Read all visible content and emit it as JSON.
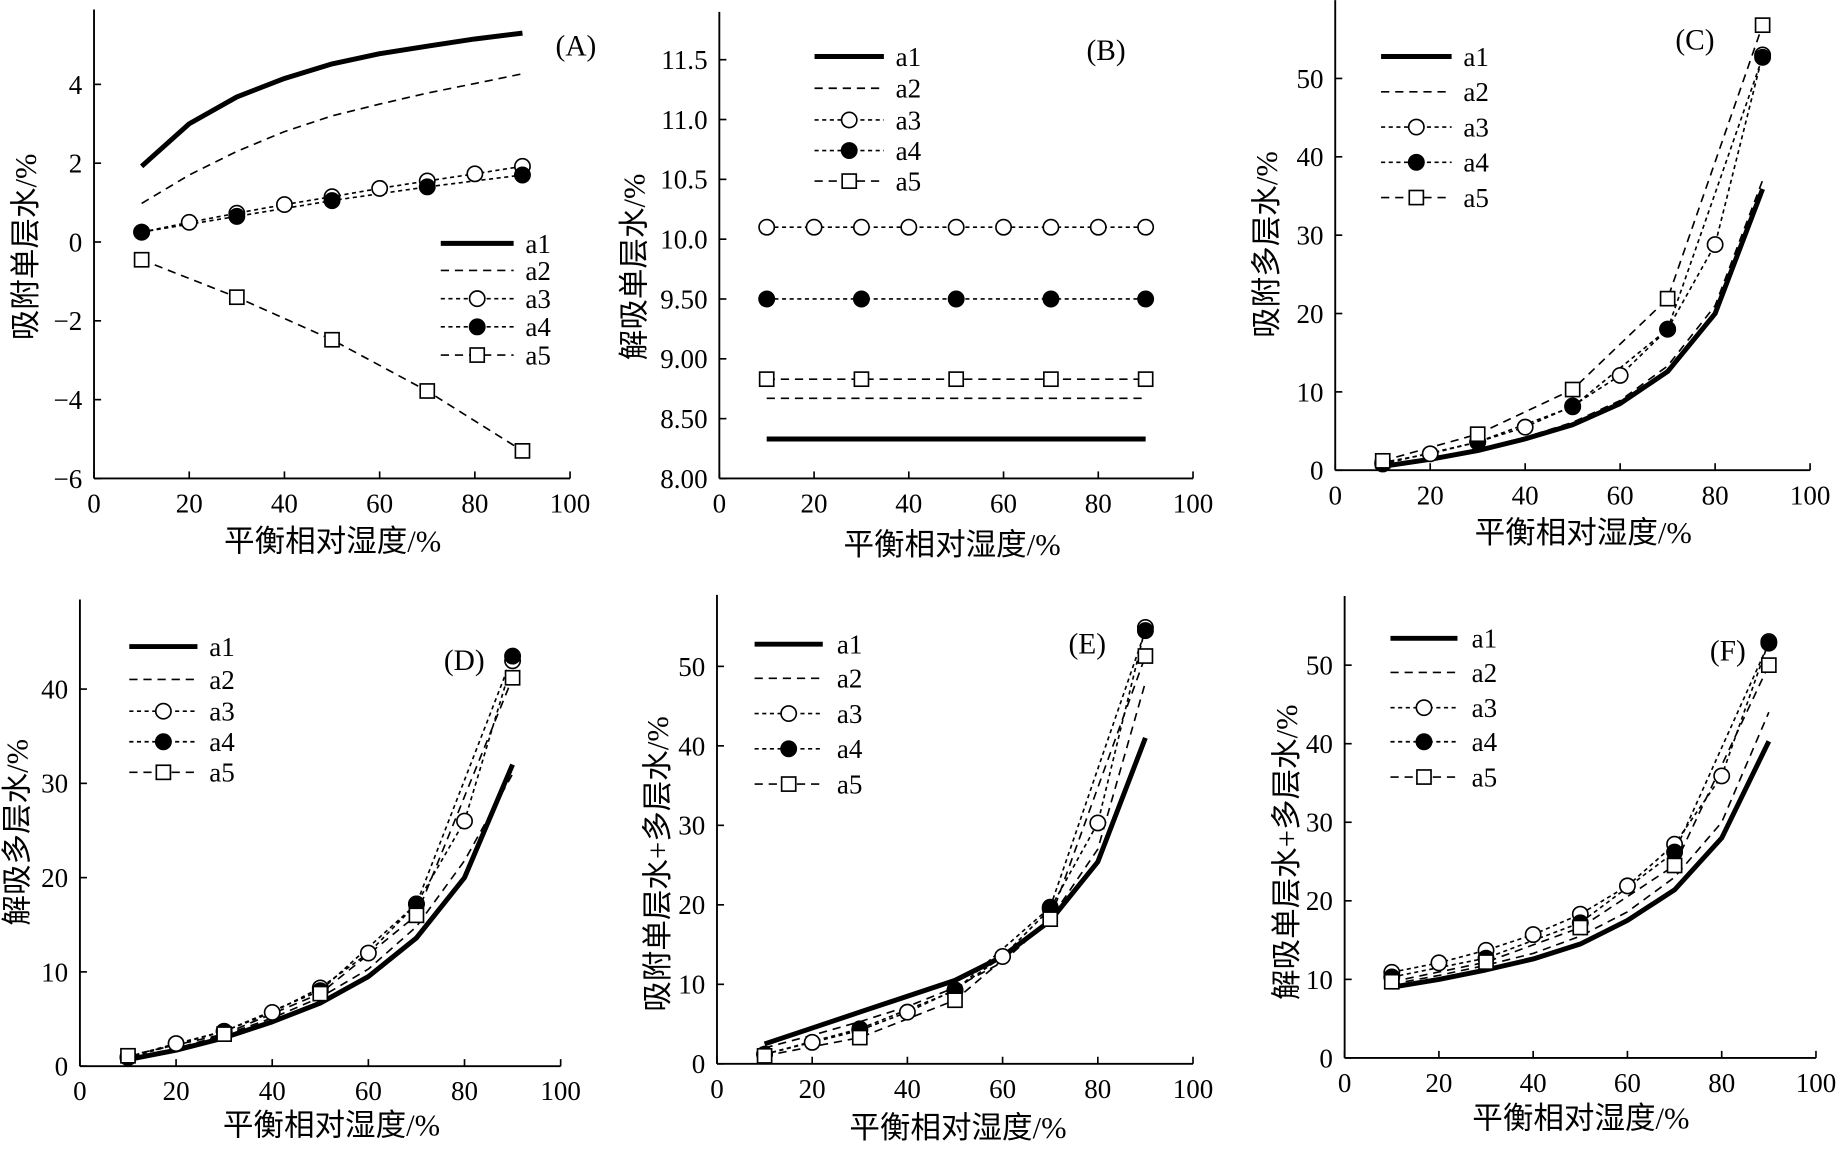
{
  "chart_data": [
    {
      "panel_label": "(A)",
      "type": "line",
      "xlabel": "平衡相对湿度/%",
      "ylabel": "吸附单层水/%",
      "xlim": [
        0,
        100
      ],
      "ylim": [
        -6,
        5.9
      ],
      "xticks": [
        0,
        20,
        40,
        60,
        80,
        100
      ],
      "yticks": [
        -6,
        -4,
        -2,
        0,
        2,
        4
      ],
      "ytick_labels": [
        "−6",
        "−4",
        "−2",
        "0",
        "2",
        "4"
      ],
      "grid": false,
      "legend": "center-right",
      "series": [
        {
          "name": "a1",
          "line": "solid-thick",
          "marker": "none",
          "x": [
            10,
            20,
            30,
            40,
            50,
            60,
            70,
            80,
            90
          ],
          "y": [
            1.92,
            3.0,
            3.68,
            4.15,
            4.52,
            4.78,
            4.97,
            5.15,
            5.3
          ]
        },
        {
          "name": "a2",
          "line": "dashed",
          "marker": "none",
          "x": [
            10,
            20,
            30,
            40,
            50,
            60,
            70,
            80,
            90
          ],
          "y": [
            0.98,
            1.7,
            2.3,
            2.8,
            3.2,
            3.5,
            3.78,
            4.02,
            4.27
          ]
        },
        {
          "name": "a3",
          "line": "short-dashed",
          "marker": "open-circle",
          "x": [
            10,
            20,
            30,
            40,
            50,
            60,
            70,
            80,
            90
          ],
          "y": [
            0.25,
            0.5,
            0.73,
            0.95,
            1.15,
            1.36,
            1.55,
            1.73,
            1.92
          ]
        },
        {
          "name": "a4",
          "line": "short-dashed",
          "marker": "filled-circle",
          "x": [
            10,
            30,
            50,
            70,
            90
          ],
          "y": [
            0.25,
            0.65,
            1.05,
            1.4,
            1.7
          ]
        },
        {
          "name": "a5",
          "line": "dashed",
          "marker": "open-square",
          "x": [
            10,
            30,
            50,
            70,
            90
          ],
          "y": [
            -0.45,
            -1.4,
            -2.48,
            -3.78,
            -5.3
          ]
        }
      ]
    },
    {
      "panel_label": "(B)",
      "type": "line",
      "xlabel": "平衡相对湿度/%",
      "ylabel": "解吸单层水/%",
      "xlim": [
        0,
        100
      ],
      "ylim": [
        8,
        11.9
      ],
      "xticks": [
        0,
        20,
        40,
        60,
        80,
        100
      ],
      "yticks": [
        8.0,
        8.5,
        9.0,
        9.5,
        10.0,
        10.5,
        11.0,
        11.5
      ],
      "ytick_labels": [
        "8.00",
        "8.50",
        "9.00",
        "9.50",
        "10.0",
        "10.5",
        "11.0",
        "11.5"
      ],
      "grid": false,
      "legend": "upper-left",
      "series": [
        {
          "name": "a1",
          "line": "solid-thick",
          "marker": "none",
          "x": [
            10,
            20,
            30,
            40,
            50,
            60,
            70,
            80,
            90
          ],
          "y": [
            8.33,
            8.33,
            8.33,
            8.33,
            8.33,
            8.33,
            8.33,
            8.33,
            8.33
          ]
        },
        {
          "name": "a2",
          "line": "dashed",
          "marker": "none",
          "x": [
            10,
            20,
            30,
            40,
            50,
            60,
            70,
            80,
            90
          ],
          "y": [
            8.67,
            8.67,
            8.67,
            8.67,
            8.67,
            8.67,
            8.67,
            8.67,
            8.67
          ]
        },
        {
          "name": "a3",
          "line": "short-dashed",
          "marker": "open-circle",
          "x": [
            10,
            20,
            30,
            40,
            50,
            60,
            70,
            80,
            90
          ],
          "y": [
            10.1,
            10.1,
            10.1,
            10.1,
            10.1,
            10.1,
            10.1,
            10.1,
            10.1
          ]
        },
        {
          "name": "a4",
          "line": "short-dashed",
          "marker": "filled-circle",
          "x": [
            10,
            30,
            50,
            70,
            90
          ],
          "y": [
            9.5,
            9.5,
            9.5,
            9.5,
            9.5
          ]
        },
        {
          "name": "a5",
          "line": "dashed",
          "marker": "open-square",
          "x": [
            10,
            30,
            50,
            70,
            90
          ],
          "y": [
            8.83,
            8.83,
            8.83,
            8.83,
            8.83
          ]
        }
      ]
    },
    {
      "panel_label": "(C)",
      "type": "line",
      "xlabel": "平衡相对湿度/%",
      "ylabel": "吸附多层水/%",
      "xlim": [
        0,
        100
      ],
      "ylim": [
        0,
        60
      ],
      "xticks": [
        0,
        20,
        40,
        60,
        80,
        100
      ],
      "yticks": [
        0,
        10,
        20,
        30,
        40,
        50
      ],
      "ytick_labels": [
        "0",
        "10",
        "20",
        "30",
        "40",
        "50"
      ],
      "grid": false,
      "legend": "upper-left",
      "series": [
        {
          "name": "a1",
          "line": "solid-thick",
          "marker": "none",
          "x": [
            10,
            20,
            30,
            40,
            50,
            60,
            70,
            80,
            90
          ],
          "y": [
            0.5,
            1.4,
            2.5,
            4.0,
            5.8,
            8.5,
            12.6,
            20.0,
            35.9
          ]
        },
        {
          "name": "a2",
          "line": "dashed",
          "marker": "none",
          "x": [
            10,
            20,
            30,
            40,
            50,
            60,
            70,
            80,
            90
          ],
          "y": [
            0.6,
            1.5,
            2.7,
            4.2,
            6.1,
            8.9,
            13.3,
            21.0,
            37.0
          ]
        },
        {
          "name": "a3",
          "line": "short-dashed",
          "marker": "open-circle",
          "x": [
            10,
            20,
            30,
            40,
            50,
            60,
            70,
            80,
            90
          ],
          "y": [
            1.0,
            2.1,
            3.6,
            5.5,
            8.2,
            12.1,
            18.0,
            28.8,
            53.0
          ]
        },
        {
          "name": "a4",
          "line": "short-dashed",
          "marker": "filled-circle",
          "x": [
            10,
            30,
            50,
            70,
            90
          ],
          "y": [
            0.8,
            3.6,
            8.1,
            18.0,
            52.7
          ]
        },
        {
          "name": "a5",
          "line": "dashed",
          "marker": "open-square",
          "x": [
            10,
            30,
            50,
            70,
            90
          ],
          "y": [
            1.2,
            4.6,
            10.3,
            21.9,
            56.8
          ]
        }
      ]
    },
    {
      "panel_label": "(D)",
      "type": "line",
      "xlabel": "平衡相对湿度/%",
      "ylabel": "解吸多层水/%",
      "xlim": [
        0,
        100
      ],
      "ylim": [
        0,
        49.5
      ],
      "xticks": [
        0,
        20,
        40,
        60,
        80,
        100
      ],
      "yticks": [
        0,
        10,
        20,
        30,
        40
      ],
      "ytick_labels": [
        "0",
        "10",
        "20",
        "30",
        "40"
      ],
      "grid": false,
      "legend": "upper-left",
      "series": [
        {
          "name": "a1",
          "line": "solid-thick",
          "marker": "none",
          "x": [
            10,
            20,
            30,
            40,
            50,
            60,
            70,
            80,
            90
          ],
          "y": [
            0.7,
            1.7,
            3.0,
            4.7,
            6.7,
            9.5,
            13.6,
            20.0,
            32.0
          ]
        },
        {
          "name": "a2",
          "line": "dashed",
          "marker": "none",
          "x": [
            10,
            20,
            30,
            40,
            50,
            60,
            70,
            80,
            90
          ],
          "y": [
            0.8,
            1.9,
            3.3,
            5.1,
            7.3,
            10.3,
            14.8,
            21.8,
            31.0
          ]
        },
        {
          "name": "a3",
          "line": "short-dashed",
          "marker": "open-circle",
          "x": [
            10,
            20,
            30,
            40,
            50,
            60,
            70,
            80,
            90
          ],
          "y": [
            1.0,
            2.4,
            3.7,
            5.7,
            8.3,
            12.0,
            17.2,
            26.0,
            43.0
          ]
        },
        {
          "name": "a4",
          "line": "short-dashed",
          "marker": "filled-circle",
          "x": [
            10,
            30,
            50,
            70,
            90
          ],
          "y": [
            0.9,
            3.7,
            8.0,
            17.2,
            43.5
          ]
        },
        {
          "name": "a5",
          "line": "dashed",
          "marker": "open-square",
          "x": [
            10,
            30,
            50,
            70,
            90
          ],
          "y": [
            1.1,
            3.4,
            7.7,
            16.0,
            41.2
          ]
        }
      ]
    },
    {
      "panel_label": "(E)",
      "type": "line",
      "xlabel": "平衡相对湿度/%",
      "ylabel": "吸附单层水+多层水/%",
      "xlim": [
        0,
        100
      ],
      "ylim": [
        0,
        59
      ],
      "xticks": [
        0,
        20,
        40,
        60,
        80,
        100
      ],
      "yticks": [
        0,
        10,
        20,
        30,
        40,
        50
      ],
      "ytick_labels": [
        "0",
        "10",
        "20",
        "30",
        "40",
        "50"
      ],
      "grid": false,
      "legend": "upper-left",
      "series": [
        {
          "name": "a1",
          "line": "solid-thick",
          "marker": "none",
          "x": [
            10,
            20,
            30,
            40,
            50,
            60,
            70,
            80,
            90
          ],
          "y": [
            2.5,
            4.5,
            6.5,
            8.5,
            10.5,
            13.5,
            18.0,
            25.4,
            41.0
          ]
        },
        {
          "name": "a2",
          "line": "dashed",
          "marker": "none",
          "x": [
            10,
            20,
            30,
            40,
            50,
            60,
            70,
            80,
            90
          ],
          "y": [
            2.0,
            3.6,
            5.3,
            7.2,
            9.6,
            12.8,
            18.2,
            27.0,
            48.0
          ]
        },
        {
          "name": "a3",
          "line": "short-dashed",
          "marker": "open-circle",
          "x": [
            10,
            20,
            30,
            40,
            50,
            60,
            70,
            80,
            90
          ],
          "y": [
            1.2,
            2.7,
            4.2,
            6.5,
            9.3,
            13.5,
            19.5,
            30.3,
            54.9
          ]
        },
        {
          "name": "a4",
          "line": "short-dashed",
          "marker": "filled-circle",
          "x": [
            10,
            30,
            50,
            70,
            90
          ],
          "y": [
            1.2,
            4.4,
            9.2,
            19.7,
            54.5
          ]
        },
        {
          "name": "a5",
          "line": "dashed",
          "marker": "open-square",
          "x": [
            10,
            30,
            50,
            70,
            90
          ],
          "y": [
            1.0,
            3.3,
            8.0,
            18.2,
            51.3
          ]
        }
      ]
    },
    {
      "panel_label": "(F)",
      "type": "line",
      "xlabel": "平衡相对湿度/%",
      "ylabel": "解吸单层水+多层水/%",
      "xlim": [
        0,
        100
      ],
      "ylim": [
        0,
        58.8
      ],
      "xticks": [
        0,
        20,
        40,
        60,
        80,
        100
      ],
      "yticks": [
        0,
        10,
        20,
        30,
        40,
        50
      ],
      "ytick_labels": [
        "0",
        "10",
        "20",
        "30",
        "40",
        "50"
      ],
      "grid": false,
      "legend": "upper-left",
      "series": [
        {
          "name": "a1",
          "line": "solid-thick",
          "marker": "none",
          "x": [
            10,
            20,
            30,
            40,
            50,
            60,
            70,
            80,
            90
          ],
          "y": [
            9.0,
            10.0,
            11.2,
            12.6,
            14.5,
            17.5,
            21.4,
            28.0,
            40.3
          ]
        },
        {
          "name": "a2",
          "line": "dashed",
          "marker": "none",
          "x": [
            10,
            20,
            30,
            40,
            50,
            60,
            70,
            80,
            90
          ],
          "y": [
            9.4,
            10.5,
            11.8,
            13.3,
            15.5,
            18.6,
            23.0,
            30.0,
            44.0
          ]
        },
        {
          "name": "a3",
          "line": "short-dashed",
          "marker": "open-circle",
          "x": [
            10,
            20,
            30,
            40,
            50,
            60,
            70,
            80,
            90
          ],
          "y": [
            10.9,
            12.1,
            13.7,
            15.7,
            18.3,
            21.9,
            27.2,
            35.9,
            53.0
          ]
        },
        {
          "name": "a4",
          "line": "short-dashed",
          "marker": "filled-circle",
          "x": [
            10,
            30,
            50,
            70,
            90
          ],
          "y": [
            10.3,
            12.7,
            17.2,
            26.2,
            52.8
          ]
        },
        {
          "name": "a5",
          "line": "dashed",
          "marker": "open-square",
          "x": [
            10,
            30,
            50,
            70,
            90
          ],
          "y": [
            9.7,
            12.2,
            16.6,
            24.5,
            50.0
          ]
        }
      ]
    }
  ]
}
